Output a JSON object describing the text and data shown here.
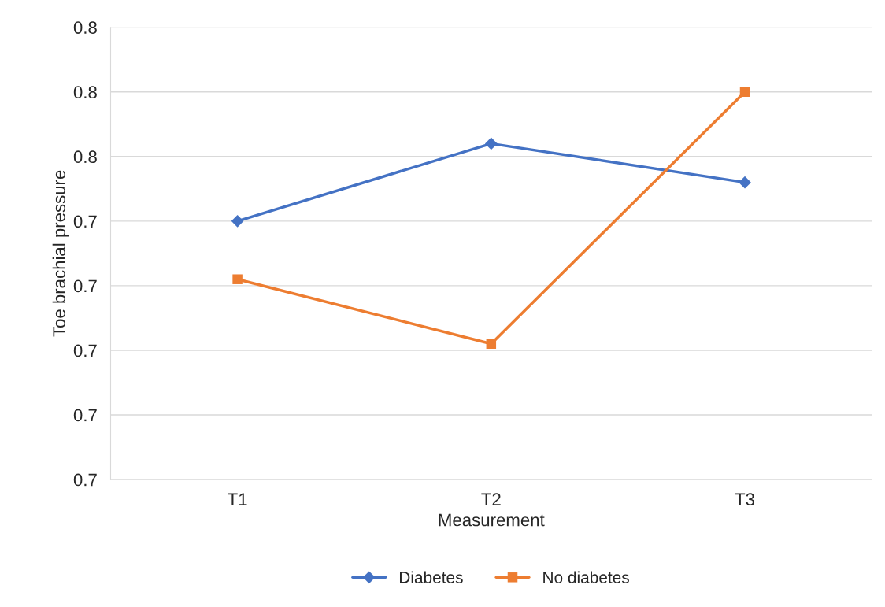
{
  "chart_data": {
    "type": "line",
    "xlabel": "Measurement",
    "ylabel": "Toe brachial pressure",
    "categories": [
      "T1",
      "T2",
      "T3"
    ],
    "series": [
      {
        "name": "Diabetes",
        "color": "#4472c4",
        "marker": "diamond",
        "values": [
          0.74,
          0.764,
          0.752
        ]
      },
      {
        "name": "No diabetes",
        "color": "#ed7d31",
        "marker": "square",
        "values": [
          0.722,
          0.702,
          0.78
        ]
      }
    ],
    "ylim": [
      0.66,
      0.8
    ],
    "yticks": [
      {
        "value": 0.66,
        "label": "0.7"
      },
      {
        "value": 0.68,
        "label": "0.7"
      },
      {
        "value": 0.7,
        "label": "0.7"
      },
      {
        "value": 0.72,
        "label": "0.7"
      },
      {
        "value": 0.74,
        "label": "0.7"
      },
      {
        "value": 0.76,
        "label": "0.8"
      },
      {
        "value": 0.78,
        "label": "0.8"
      },
      {
        "value": 0.8,
        "label": "0.8"
      }
    ],
    "grid": "y",
    "legend": "bottom",
    "line_style": "solid"
  }
}
